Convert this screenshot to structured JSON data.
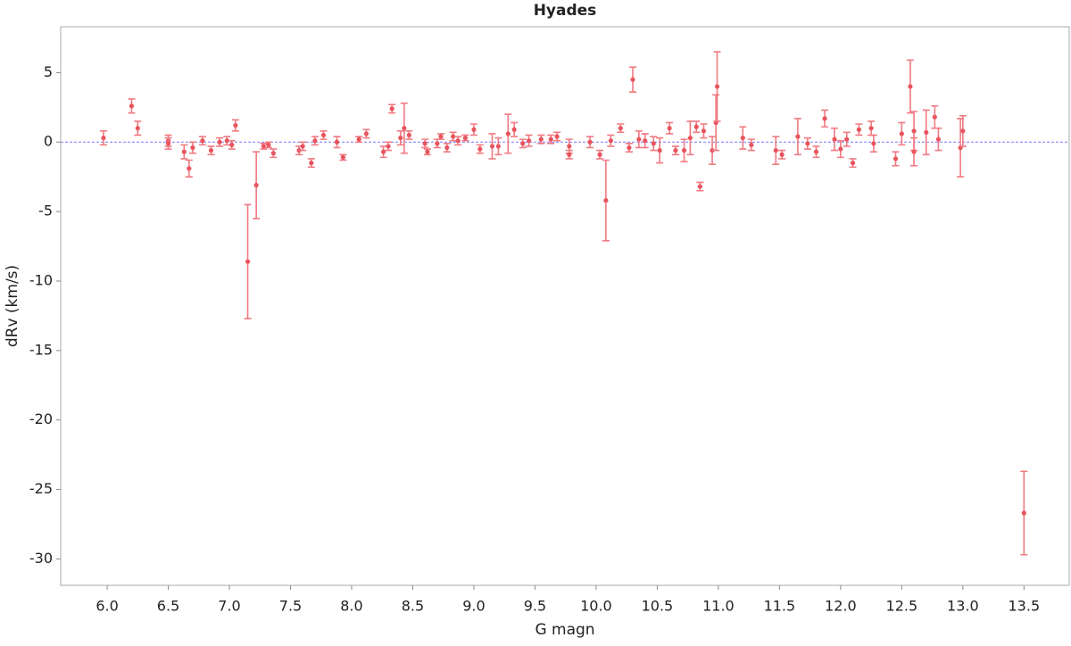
{
  "chart_data": {
    "type": "scatter",
    "title": "Hyades",
    "x_label": "G magn",
    "y_label": "dRv (km/s)",
    "x": [
      5.97,
      6.2,
      6.25,
      6.5,
      6.5,
      6.63,
      6.67,
      6.7,
      6.78,
      6.85,
      6.92,
      6.98,
      7.02,
      7.05,
      7.15,
      7.22,
      7.28,
      7.32,
      7.36,
      7.57,
      7.6,
      7.67,
      7.7,
      7.77,
      7.88,
      7.93,
      8.06,
      8.12,
      8.26,
      8.3,
      8.33,
      8.4,
      8.43,
      8.47,
      8.6,
      8.62,
      8.7,
      8.73,
      8.78,
      8.83,
      8.87,
      8.93,
      9.0,
      9.05,
      9.15,
      9.2,
      9.28,
      9.33,
      9.4,
      9.45,
      9.55,
      9.63,
      9.68,
      9.78,
      9.78,
      9.95,
      10.03,
      10.08,
      10.12,
      10.2,
      10.27,
      10.3,
      10.35,
      10.4,
      10.47,
      10.52,
      10.6,
      10.65,
      10.72,
      10.77,
      10.82,
      10.85,
      10.88,
      10.95,
      10.98,
      10.99,
      11.2,
      11.27,
      11.47,
      11.52,
      11.65,
      11.73,
      11.8,
      11.87,
      11.95,
      12.0,
      12.05,
      12.1,
      12.15,
      12.25,
      12.27,
      12.45,
      12.5,
      12.57,
      12.6,
      12.6,
      12.7,
      12.77,
      12.8,
      12.98,
      13.0,
      13.5
    ],
    "values": [
      0.3,
      2.6,
      1.0,
      0.1,
      -0.1,
      -0.7,
      -1.9,
      -0.4,
      0.1,
      -0.6,
      0.0,
      0.1,
      -0.2,
      1.2,
      -8.6,
      -3.1,
      -0.3,
      -0.2,
      -0.8,
      -0.6,
      -0.3,
      -1.5,
      0.1,
      0.5,
      0.0,
      -1.1,
      0.2,
      0.6,
      -0.7,
      -0.3,
      2.4,
      0.3,
      1.0,
      0.5,
      -0.1,
      -0.7,
      -0.1,
      0.4,
      -0.4,
      0.4,
      0.1,
      0.3,
      0.9,
      -0.5,
      -0.3,
      -0.3,
      0.6,
      0.9,
      -0.1,
      0.1,
      0.2,
      0.2,
      0.4,
      -0.3,
      -0.9,
      0.0,
      -0.9,
      -4.2,
      0.1,
      1.0,
      -0.4,
      4.5,
      0.2,
      0.1,
      -0.1,
      -0.6,
      1.0,
      -0.6,
      -0.6,
      0.3,
      1.1,
      -3.2,
      0.8,
      -0.6,
      1.4,
      4.0,
      0.3,
      -0.2,
      -0.6,
      -0.9,
      0.4,
      -0.1,
      -0.7,
      1.7,
      0.2,
      -0.5,
      0.2,
      -1.5,
      0.9,
      1.0,
      -0.1,
      -1.2,
      0.6,
      4.0,
      0.8,
      -0.7,
      0.7,
      1.8,
      0.2,
      -0.4,
      0.8,
      -26.7
    ],
    "errors": [
      0.5,
      0.5,
      0.5,
      0.4,
      0.4,
      0.5,
      0.6,
      0.4,
      0.3,
      0.3,
      0.3,
      0.3,
      0.3,
      0.4,
      4.1,
      2.4,
      0.2,
      0.2,
      0.3,
      0.3,
      0.3,
      0.3,
      0.3,
      0.3,
      0.4,
      0.2,
      0.2,
      0.3,
      0.4,
      0.3,
      0.3,
      0.5,
      1.8,
      0.3,
      0.3,
      0.2,
      0.3,
      0.2,
      0.3,
      0.3,
      0.3,
      0.2,
      0.4,
      0.3,
      0.9,
      0.6,
      1.4,
      0.5,
      0.3,
      0.4,
      0.3,
      0.3,
      0.3,
      0.5,
      0.3,
      0.4,
      0.3,
      2.9,
      0.4,
      0.3,
      0.3,
      0.9,
      0.6,
      0.5,
      0.5,
      0.9,
      0.4,
      0.3,
      0.8,
      1.2,
      0.4,
      0.3,
      0.5,
      1.0,
      2.0,
      2.5,
      0.8,
      0.4,
      1.0,
      0.3,
      1.3,
      0.4,
      0.4,
      0.6,
      0.8,
      0.6,
      0.5,
      0.3,
      0.4,
      0.5,
      0.6,
      0.5,
      0.8,
      1.9,
      1.4,
      1.0,
      1.6,
      0.8,
      0.8,
      2.1,
      1.1,
      3.0
    ],
    "color": "#e8545e",
    "error_color": "#f07a82",
    "reference_y": 0,
    "reference_color": "#7b7bff",
    "xlim": [
      5.62,
      13.87
    ],
    "ylim": [
      -31.9,
      8.3
    ],
    "xticks": [
      {
        "value": 6,
        "label": "6.0"
      },
      {
        "value": 6.5,
        "label": "6.5"
      },
      {
        "value": 7,
        "label": "7.0"
      },
      {
        "value": 7.5,
        "label": "7.5"
      },
      {
        "value": 8,
        "label": "8.0"
      },
      {
        "value": 8.5,
        "label": "8.5"
      },
      {
        "value": 9,
        "label": "9.0"
      },
      {
        "value": 9.5,
        "label": "9.5"
      },
      {
        "value": 10,
        "label": "10.0"
      },
      {
        "value": 10.5,
        "label": "10.5"
      },
      {
        "value": 11,
        "label": "11.0"
      },
      {
        "value": 11.5,
        "label": "11.5"
      },
      {
        "value": 12,
        "label": "12.0"
      },
      {
        "value": 12.5,
        "label": "12.5"
      },
      {
        "value": 13,
        "label": "13.0"
      },
      {
        "value": 13.5,
        "label": "13.5"
      }
    ],
    "yticks": [
      -30,
      -25,
      -20,
      -15,
      -10,
      -5,
      0,
      5
    ],
    "grid": false
  }
}
